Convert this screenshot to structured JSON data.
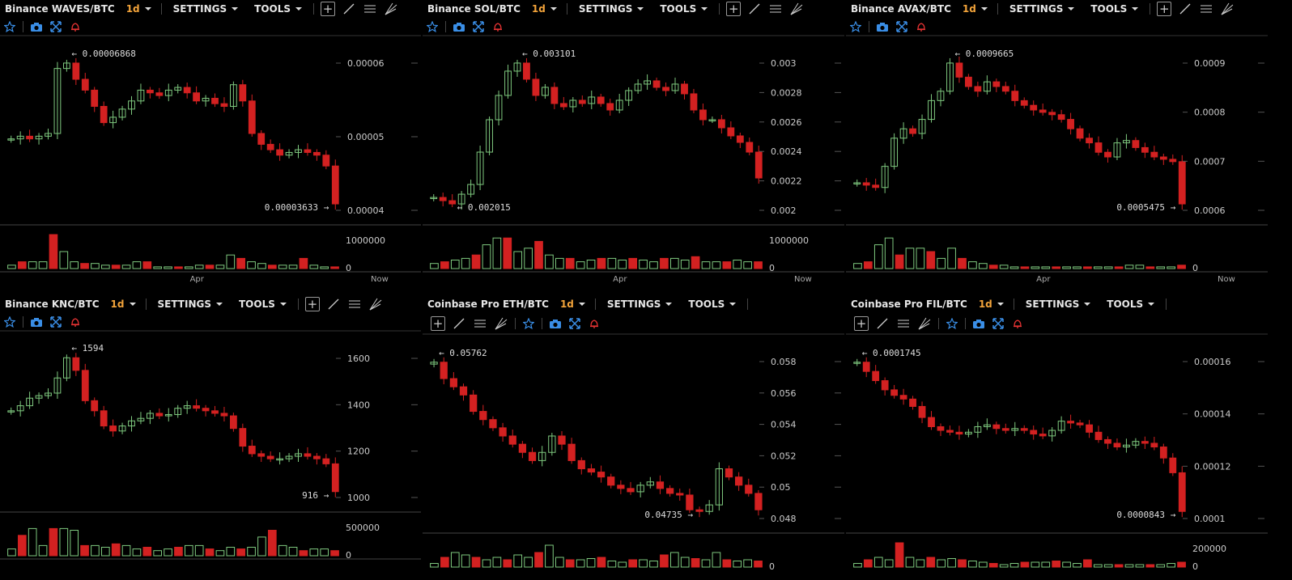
{
  "ui": {
    "settings_label": "SETTINGS",
    "tools_label": "TOOLS",
    "colors": {
      "up": "#7ec87e",
      "down": "#d32121",
      "bg": "#000000",
      "text": "#dddddd",
      "accent": "#f2a33a",
      "icon_blue": "#3a8ee6",
      "icon_red": "#e53333"
    },
    "icons": [
      "crosshair-icon",
      "trendline-icon",
      "fib-icon",
      "pitchfork-icon",
      "star-icon",
      "camera-icon",
      "fullscreen-icon",
      "bell-icon"
    ]
  },
  "panels": [
    {
      "symbol": "Binance WAVES/BTC",
      "timeframe": "1d",
      "y_ticks": [
        "0.00006",
        "0.00005",
        "0.00004"
      ],
      "vol_ticks": [
        "1000000",
        "0"
      ],
      "x_labels": [
        "Apr",
        "Now"
      ],
      "high_label": "← 0.00006868",
      "low_label": "0.00003633 →"
    },
    {
      "symbol": "Binance SOL/BTC",
      "timeframe": "1d",
      "y_ticks": [
        "0.003",
        "0.0028",
        "0.0026",
        "0.0024",
        "0.0022",
        "0.002"
      ],
      "vol_ticks": [
        "1000000",
        "0"
      ],
      "x_labels": [
        "Apr",
        "Now"
      ],
      "high_label": "← 0.003101",
      "low_label": "← 0.002015"
    },
    {
      "symbol": "Binance AVAX/BTC",
      "timeframe": "1d",
      "y_ticks": [
        "0.0009",
        "0.0008",
        "0.0007",
        "0.0006"
      ],
      "vol_ticks": [
        "0"
      ],
      "x_labels": [
        "Apr",
        "Now"
      ],
      "high_label": "← 0.0009665",
      "low_label": "0.0005475 →"
    },
    {
      "symbol": "Binance KNC/BTC",
      "timeframe": "1d",
      "y_ticks": [
        "1600",
        "1400",
        "1200",
        "1000"
      ],
      "vol_ticks": [
        "500000",
        "0"
      ],
      "x_labels": [],
      "high_label": "← 1594",
      "low_label": "916 →"
    },
    {
      "symbol": "Coinbase Pro ETH/BTC",
      "timeframe": "1d",
      "y_ticks": [
        "0.058",
        "0.056",
        "0.054",
        "0.052",
        "0.05",
        "0.048"
      ],
      "vol_ticks": [
        "0"
      ],
      "x_labels": [],
      "high_label": "← 0.05762",
      "low_label": "0.04735 →"
    },
    {
      "symbol": "Coinbase Pro FIL/BTC",
      "timeframe": "1d",
      "y_ticks": [
        "0.00016",
        "0.00014",
        "0.00012",
        "0.0001"
      ],
      "vol_ticks": [
        "200000",
        "0"
      ],
      "x_labels": [],
      "high_label": "← 0.0001745",
      "low_label": "0.0000843 →"
    }
  ],
  "chart_data": [
    {
      "type": "candlestick",
      "series": [
        4.9e-05,
        4.95e-05,
        4.9e-05,
        4.95e-05,
        5e-05,
        6.2e-05,
        6.3e-05,
        6e-05,
        5.8e-05,
        5.5e-05,
        5.2e-05,
        5.3e-05,
        5.45e-05,
        5.6e-05,
        5.8e-05,
        5.75e-05,
        5.7e-05,
        5.8e-05,
        5.85e-05,
        5.75e-05,
        5.6e-05,
        5.65e-05,
        5.55e-05,
        5.5e-05,
        5.9e-05,
        5.6e-05,
        5e-05,
        4.8e-05,
        4.7e-05,
        4.6e-05,
        4.65e-05,
        4.7e-05,
        4.65e-05,
        4.6e-05,
        4.4e-05,
        3.7e-05
      ],
      "volume": [
        0.1,
        0.2,
        0.2,
        0.2,
        1.0,
        0.5,
        0.2,
        0.15,
        0.15,
        0.1,
        0.1,
        0.1,
        0.2,
        0.2,
        0.05,
        0.05,
        0.05,
        0.05,
        0.1,
        0.1,
        0.1,
        0.4,
        0.3,
        0.2,
        0.15,
        0.1,
        0.1,
        0.1,
        0.3,
        0.1,
        0.05,
        0.05
      ]
    },
    {
      "type": "candlestick",
      "series": [
        0.00212,
        0.0021,
        0.00208,
        0.00214,
        0.0022,
        0.0024,
        0.0026,
        0.00275,
        0.0029,
        0.00295,
        0.00285,
        0.00275,
        0.0028,
        0.0027,
        0.00268,
        0.00272,
        0.0027,
        0.00274,
        0.0027,
        0.00266,
        0.00272,
        0.00278,
        0.00282,
        0.00284,
        0.0028,
        0.00278,
        0.00282,
        0.00276,
        0.00266,
        0.0026,
        0.0026,
        0.00255,
        0.0025,
        0.00246,
        0.0024,
        0.00224
      ],
      "volume": [
        0.15,
        0.2,
        0.25,
        0.3,
        0.4,
        0.7,
        0.9,
        0.9,
        0.5,
        0.6,
        0.8,
        0.4,
        0.3,
        0.3,
        0.2,
        0.25,
        0.3,
        0.3,
        0.25,
        0.3,
        0.25,
        0.2,
        0.3,
        0.3,
        0.25,
        0.35,
        0.2,
        0.2,
        0.2,
        0.25,
        0.2,
        0.2
      ]
    },
    {
      "type": "candlestick",
      "series": [
        0.000625,
        0.00062,
        0.000615,
        0.00066,
        0.00072,
        0.00074,
        0.00073,
        0.00076,
        0.0008,
        0.00082,
        0.00088,
        0.00085,
        0.00083,
        0.00082,
        0.00084,
        0.00083,
        0.00082,
        0.0008,
        0.00079,
        0.00078,
        0.000775,
        0.00077,
        0.00076,
        0.00074,
        0.00072,
        0.00071,
        0.00069,
        0.00068,
        0.00071,
        0.000715,
        0.0007,
        0.00069,
        0.00068,
        0.000675,
        0.00067,
        0.00058
      ],
      "volume": [
        0.15,
        0.2,
        0.7,
        0.9,
        0.4,
        0.6,
        0.6,
        0.5,
        0.3,
        0.6,
        0.3,
        0.2,
        0.15,
        0.1,
        0.1,
        0.05,
        0.05,
        0.05,
        0.05,
        0.05,
        0.05,
        0.05,
        0.05,
        0.05,
        0.05,
        0.05,
        0.1,
        0.1,
        0.05,
        0.05,
        0.05,
        0.1
      ]
    },
    {
      "type": "candlestick",
      "series": [
        1290,
        1310,
        1340,
        1350,
        1360,
        1420,
        1500,
        1450,
        1330,
        1290,
        1230,
        1210,
        1230,
        1250,
        1260,
        1280,
        1270,
        1275,
        1300,
        1310,
        1300,
        1290,
        1280,
        1270,
        1220,
        1150,
        1120,
        1110,
        1100,
        1100,
        1110,
        1120,
        1110,
        1100,
        1080,
        970
      ],
      "volume": [
        0.2,
        0.6,
        0.8,
        0.3,
        0.8,
        0.8,
        0.75,
        0.3,
        0.3,
        0.25,
        0.35,
        0.3,
        0.2,
        0.25,
        0.15,
        0.2,
        0.25,
        0.3,
        0.3,
        0.2,
        0.15,
        0.25,
        0.2,
        0.25,
        0.55,
        0.75,
        0.3,
        0.25,
        0.15,
        0.2,
        0.2,
        0.15
      ]
    },
    {
      "type": "candlestick",
      "series": [
        0.0575,
        0.0565,
        0.056,
        0.0555,
        0.0545,
        0.054,
        0.0535,
        0.053,
        0.0525,
        0.052,
        0.0515,
        0.052,
        0.053,
        0.0525,
        0.0515,
        0.051,
        0.0508,
        0.0505,
        0.05,
        0.0498,
        0.0496,
        0.05,
        0.0502,
        0.0498,
        0.0495,
        0.0494,
        0.0485,
        0.0484,
        0.0488,
        0.051,
        0.0505,
        0.05,
        0.0495,
        0.0485
      ],
      "volume": [
        0.15,
        0.4,
        0.6,
        0.5,
        0.4,
        0.3,
        0.4,
        0.3,
        0.5,
        0.4,
        0.6,
        0.9,
        0.4,
        0.3,
        0.3,
        0.35,
        0.4,
        0.25,
        0.2,
        0.3,
        0.3,
        0.25,
        0.5,
        0.6,
        0.4,
        0.35,
        0.3,
        0.6,
        0.3,
        0.25,
        0.3,
        0.25
      ]
    },
    {
      "type": "candlestick",
      "series": [
        0.00017,
        0.000165,
        0.00016,
        0.000155,
        0.000152,
        0.00015,
        0.000146,
        0.00014,
        0.000135,
        0.000133,
        0.000132,
        0.000131,
        0.000132,
        0.000135,
        0.000136,
        0.000134,
        0.000133,
        0.000134,
        0.000133,
        0.000131,
        0.00013,
        0.000133,
        0.000138,
        0.000137,
        0.000136,
        0.000132,
        0.000128,
        0.000126,
        0.000124,
        0.000125,
        0.000127,
        0.000126,
        0.000124,
        0.000118,
        0.00011,
        8.9e-05
      ],
      "volume": [
        0.15,
        0.3,
        0.4,
        0.3,
        1.0,
        0.4,
        0.3,
        0.4,
        0.3,
        0.35,
        0.3,
        0.25,
        0.2,
        0.15,
        0.1,
        0.15,
        0.2,
        0.2,
        0.2,
        0.25,
        0.2,
        0.15,
        0.3,
        0.1,
        0.1,
        0.1,
        0.1,
        0.1,
        0.1,
        0.1,
        0.15,
        0.2
      ]
    }
  ]
}
